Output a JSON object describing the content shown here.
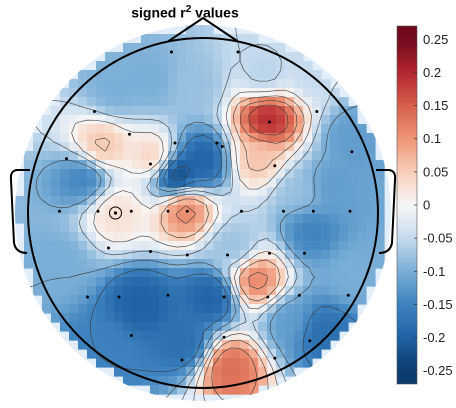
{
  "chart_data": {
    "type": "heatmap",
    "subtype": "eeg-topographic-map",
    "title": {
      "prefix": "signed r",
      "superscript": "2",
      "suffix": " values"
    },
    "colormap": {
      "name": "diverging-red-blue",
      "stops": [
        {
          "value": -0.25,
          "color": "#0b3a6e"
        },
        {
          "value": -0.2,
          "color": "#1f62a4"
        },
        {
          "value": -0.15,
          "color": "#3d82bf"
        },
        {
          "value": -0.1,
          "color": "#7aaed6"
        },
        {
          "value": -0.05,
          "color": "#c6dbee"
        },
        {
          "value": 0,
          "color": "#f7f6f6"
        },
        {
          "value": 0.05,
          "color": "#f8cfb9"
        },
        {
          "value": 0.1,
          "color": "#ee9577"
        },
        {
          "value": 0.15,
          "color": "#d6604d"
        },
        {
          "value": 0.2,
          "color": "#b42630"
        },
        {
          "value": 0.25,
          "color": "#6f0a1c"
        }
      ]
    },
    "colorbar": {
      "range": [
        -0.27,
        0.27
      ],
      "ticks": [
        0.25,
        0.2,
        0.15,
        0.1,
        0.05,
        0,
        -0.05,
        -0.1,
        -0.15,
        -0.2,
        -0.25
      ],
      "tick_labels": [
        "0.25",
        "0.2",
        "0.15",
        "0.1",
        "0.05",
        "0",
        "-0.05",
        "-0.1",
        "-0.15",
        "-0.2",
        "-0.25"
      ]
    },
    "value_range": [
      -0.27,
      0.27
    ],
    "hotspots": [
      {
        "x": -0.15,
        "y": 0.22,
        "value": -0.24
      },
      {
        "x": 0.0,
        "y": 0.3,
        "value": -0.2
      },
      {
        "x": 0.37,
        "y": 0.54,
        "value": 0.2
      },
      {
        "x": 0.31,
        "y": 0.31,
        "value": 0.06
      },
      {
        "x": 0.3,
        "y": -0.38,
        "value": 0.12
      },
      {
        "x": 0.05,
        "y": -0.48,
        "value": -0.2
      },
      {
        "x": -0.1,
        "y": 0.02,
        "value": 0.12
      },
      {
        "x": -0.5,
        "y": 0.0,
        "value": 0.03
      },
      {
        "x": -0.58,
        "y": 0.38,
        "value": 0.06
      },
      {
        "x": -0.28,
        "y": 0.32,
        "value": 0.05
      },
      {
        "x": 0.15,
        "y": -0.88,
        "value": 0.14
      },
      {
        "x": -0.68,
        "y": 0.2,
        "value": -0.15
      },
      {
        "x": -0.35,
        "y": -0.52,
        "value": -0.2
      },
      {
        "x": -0.1,
        "y": -0.75,
        "value": -0.18
      },
      {
        "x": -0.55,
        "y": -0.78,
        "value": -0.15
      },
      {
        "x": 0.62,
        "y": -0.1,
        "value": -0.15
      },
      {
        "x": 0.72,
        "y": 0.15,
        "value": -0.12
      },
      {
        "x": 0.5,
        "y": -0.62,
        "value": -0.12
      },
      {
        "x": 0.68,
        "y": -0.68,
        "value": -0.18
      },
      {
        "x": 0.18,
        "y": -0.2,
        "value": -0.08
      },
      {
        "x": 0.55,
        "y": 0.12,
        "value": -0.08
      },
      {
        "x": -0.05,
        "y": 0.72,
        "value": -0.08
      },
      {
        "x": 0.35,
        "y": 0.78,
        "value": -0.06
      },
      {
        "x": -0.3,
        "y": 0.75,
        "value": -0.1
      },
      {
        "x": -0.82,
        "y": -0.28,
        "value": -0.1
      },
      {
        "x": 0.86,
        "y": -0.35,
        "value": -0.1
      },
      {
        "x": 0.62,
        "y": 0.8,
        "value": -0.05
      },
      {
        "x": -0.5,
        "y": 0.7,
        "value": -0.1
      },
      {
        "x": 0.85,
        "y": 0.42,
        "value": -0.12
      }
    ],
    "electrodes": [
      {
        "x": -0.18,
        "y": 0.92
      },
      {
        "x": 0.2,
        "y": 0.92
      },
      {
        "x": -0.62,
        "y": 0.58
      },
      {
        "x": -0.42,
        "y": 0.45
      },
      {
        "x": -0.16,
        "y": 0.4
      },
      {
        "x": 0.08,
        "y": 0.4
      },
      {
        "x": 0.38,
        "y": 0.52
      },
      {
        "x": 0.65,
        "y": 0.58
      },
      {
        "x": -0.3,
        "y": 0.28
      },
      {
        "x": 0.11,
        "y": 0.38
      },
      {
        "x": 0.41,
        "y": 0.27
      },
      {
        "x": -0.78,
        "y": 0.31
      },
      {
        "x": 0.85,
        "y": 0.35
      },
      {
        "x": -0.82,
        "y": 0.01
      },
      {
        "x": -0.6,
        "y": 0.01
      },
      {
        "x": -0.41,
        "y": 0.01
      },
      {
        "x": -0.2,
        "y": 0.01
      },
      {
        "x": -0.09,
        "y": 0.01
      },
      {
        "x": 0.22,
        "y": 0.01
      },
      {
        "x": 0.46,
        "y": 0.01
      },
      {
        "x": 0.63,
        "y": 0.01
      },
      {
        "x": 0.84,
        "y": 0.01
      },
      {
        "x": -0.54,
        "y": -0.2
      },
      {
        "x": -0.3,
        "y": -0.22
      },
      {
        "x": -0.09,
        "y": -0.24
      },
      {
        "x": 0.14,
        "y": -0.24
      },
      {
        "x": 0.38,
        "y": -0.23
      },
      {
        "x": 0.58,
        "y": -0.23
      },
      {
        "x": -0.66,
        "y": -0.48
      },
      {
        "x": -0.48,
        "y": -0.48
      },
      {
        "x": -0.2,
        "y": -0.47
      },
      {
        "x": 0.12,
        "y": -0.48
      },
      {
        "x": 0.37,
        "y": -0.48
      },
      {
        "x": 0.55,
        "y": -0.47
      },
      {
        "x": 0.83,
        "y": -0.47
      },
      {
        "x": -0.41,
        "y": -0.7
      },
      {
        "x": 0.12,
        "y": -0.71
      },
      {
        "x": -0.12,
        "y": -0.84
      },
      {
        "x": 0.41,
        "y": -0.83
      },
      {
        "x": 0.61,
        "y": -0.73
      }
    ],
    "marked_electrode": {
      "x": -0.5,
      "y": 0.0
    },
    "contour_levels": [
      -0.2,
      -0.15,
      -0.1,
      -0.05,
      0,
      0.05,
      0.1,
      0.15,
      0.2
    ],
    "colors": {
      "head_outline": "#000000",
      "contour_line": "#3a3a3a",
      "electrode": "#000000",
      "outer_ring": "#e3eefb"
    }
  }
}
